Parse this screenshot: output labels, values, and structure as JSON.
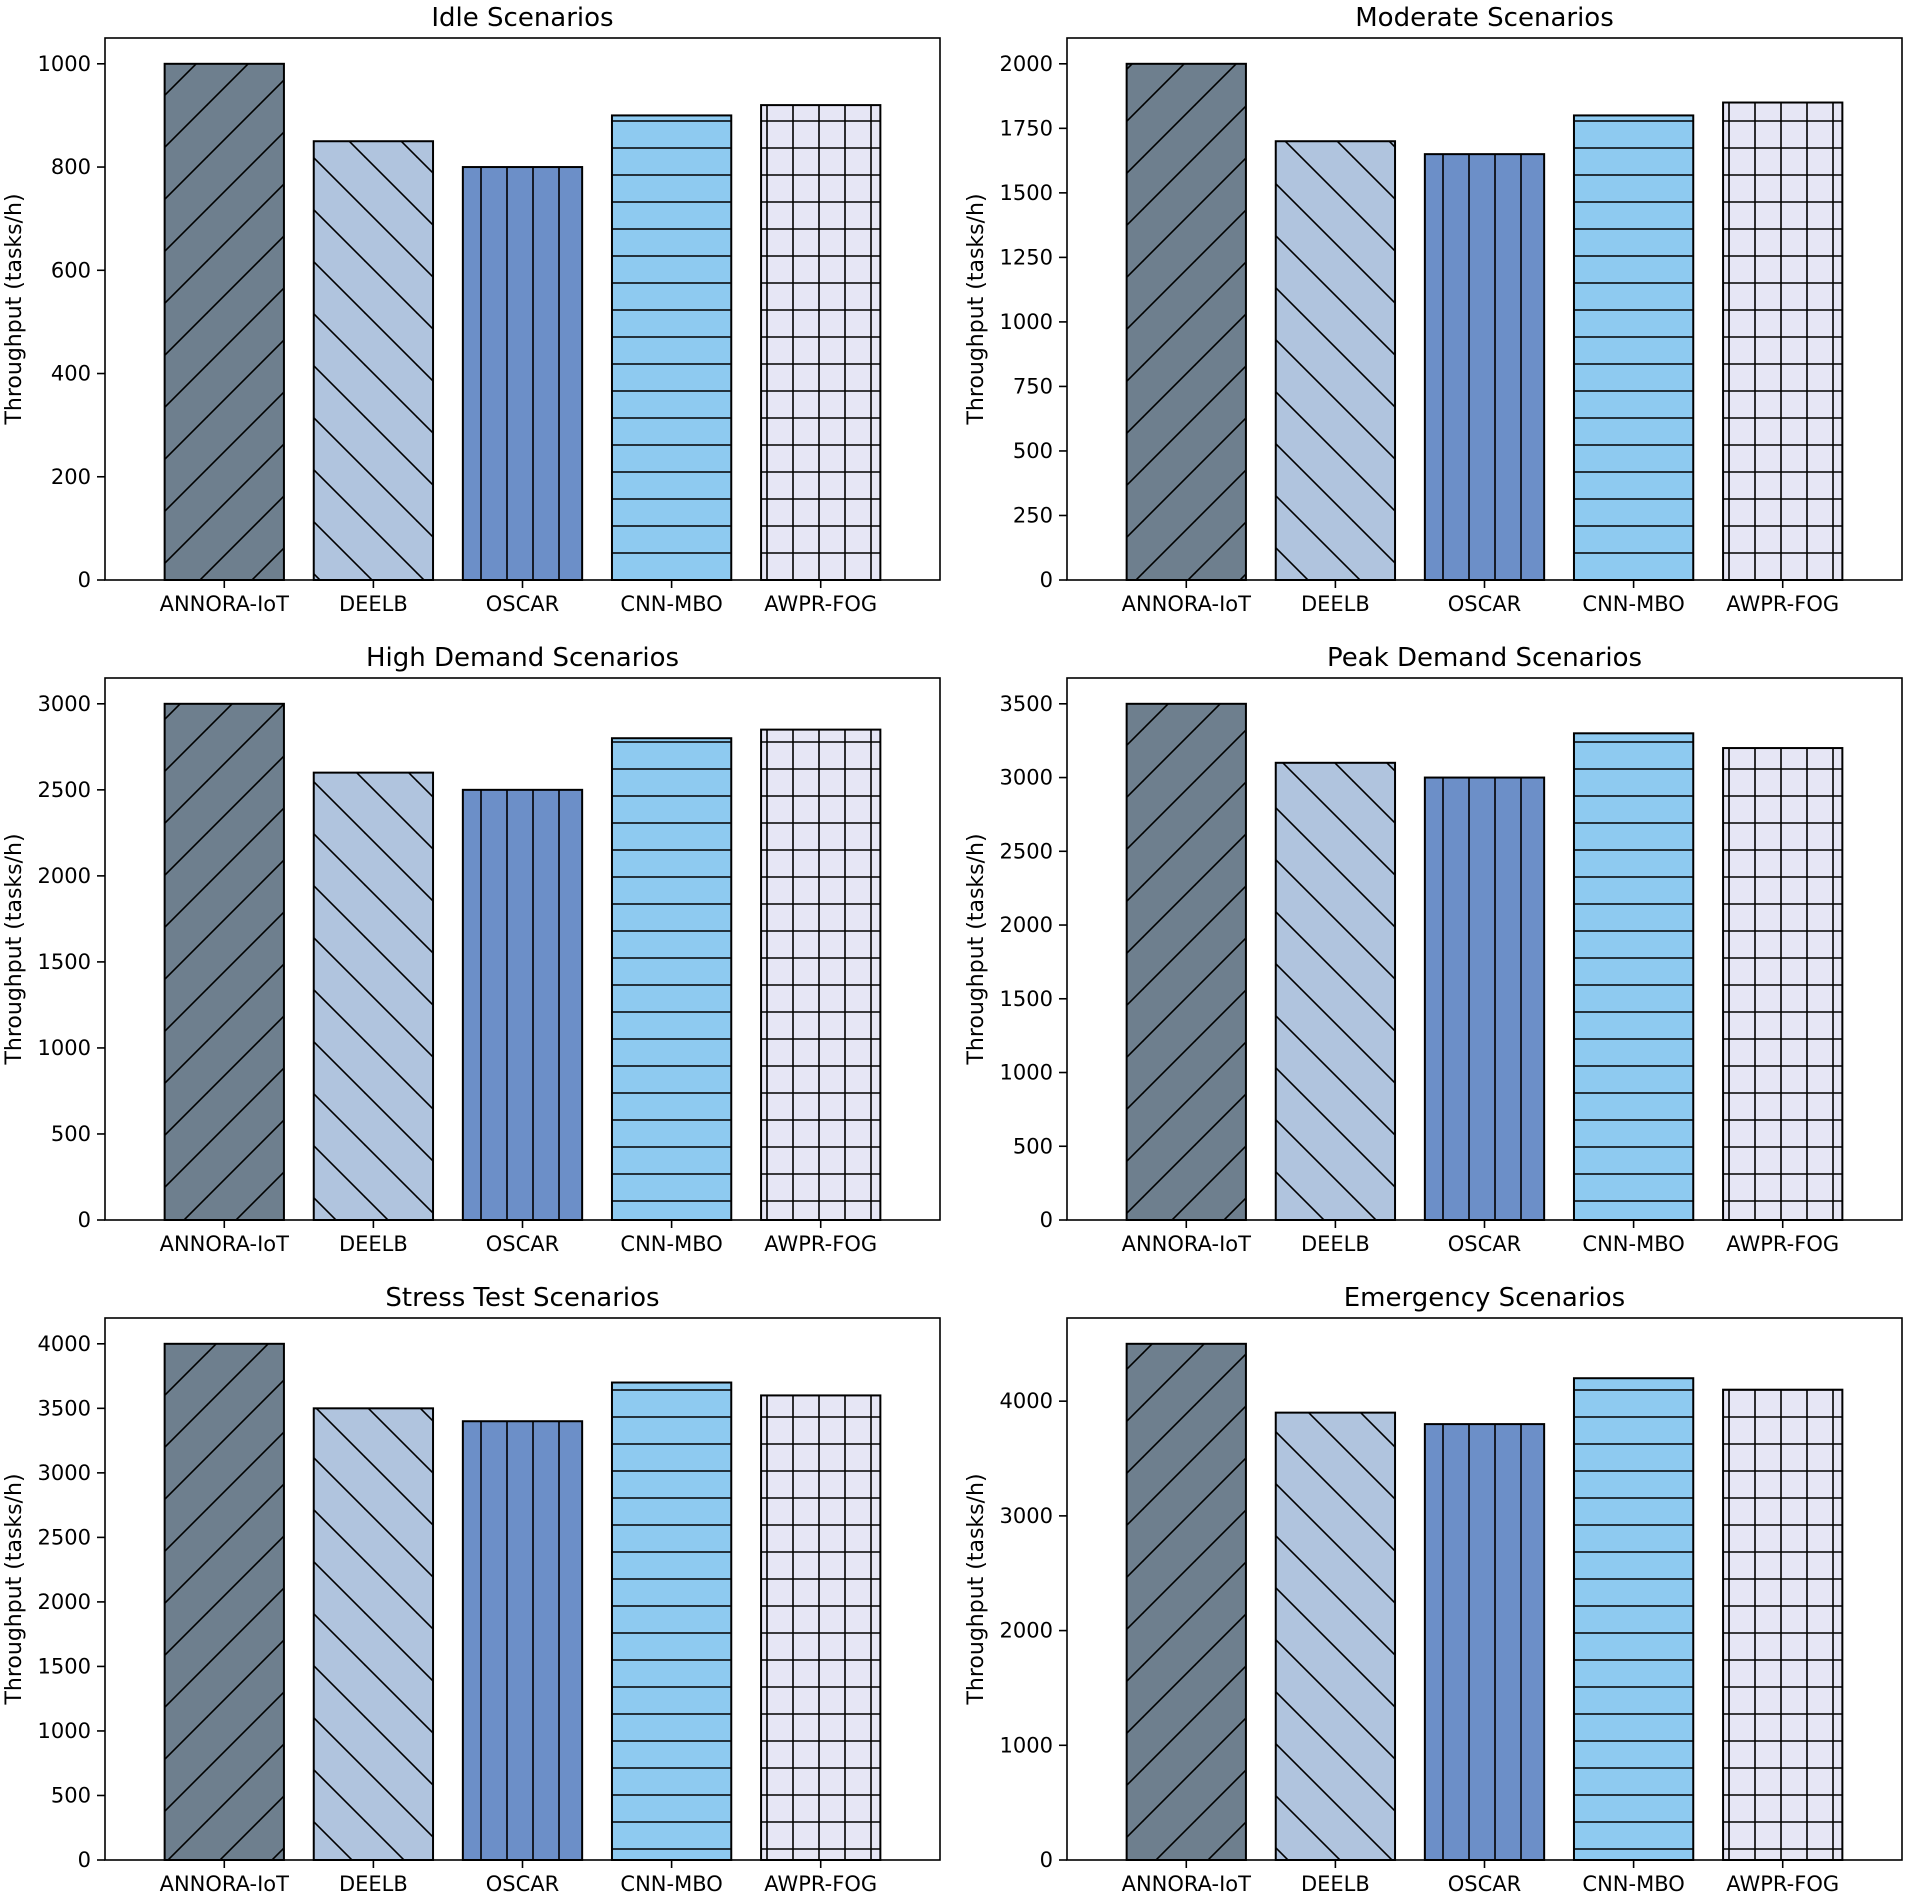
{
  "figure": {
    "bar_colors": [
      "#6e7f8e",
      "#b0c4de",
      "#6c8fc8",
      "#8ecaf0",
      "#e6e6f5"
    ],
    "hatch_patterns": [
      "diagonal-up",
      "diagonal-down",
      "vertical",
      "horizontal",
      "grid"
    ]
  },
  "chart_data": [
    {
      "type": "bar",
      "title": "Idle Scenarios",
      "xlabel": "",
      "ylabel": "Throughput (tasks/h)",
      "categories": [
        "ANNORA-IoT",
        "DEELB",
        "OSCAR",
        "CNN-MBO",
        "AWPR-FOG"
      ],
      "values": [
        1000,
        850,
        800,
        900,
        920
      ],
      "ylim": [
        0,
        1050
      ],
      "yticks": [
        0,
        200,
        400,
        600,
        800,
        1000
      ],
      "ytick_labels": [
        "0",
        "200",
        "400",
        "600",
        "800",
        "1000"
      ]
    },
    {
      "type": "bar",
      "title": "Moderate Scenarios",
      "xlabel": "",
      "ylabel": "Throughput (tasks/h)",
      "categories": [
        "ANNORA-IoT",
        "DEELB",
        "OSCAR",
        "CNN-MBO",
        "AWPR-FOG"
      ],
      "values": [
        2000,
        1700,
        1650,
        1800,
        1850
      ],
      "ylim": [
        0,
        2100
      ],
      "yticks": [
        0,
        250,
        500,
        750,
        1000,
        1250,
        1500,
        1750,
        2000
      ],
      "ytick_labels": [
        "0",
        "250",
        "500",
        "750",
        "1000",
        "1250",
        "1500",
        "1750",
        "2000"
      ]
    },
    {
      "type": "bar",
      "title": "High Demand Scenarios",
      "xlabel": "",
      "ylabel": "Throughput (tasks/h)",
      "categories": [
        "ANNORA-IoT",
        "DEELB",
        "OSCAR",
        "CNN-MBO",
        "AWPR-FOG"
      ],
      "values": [
        3000,
        2600,
        2500,
        2800,
        2850
      ],
      "ylim": [
        0,
        3150
      ],
      "yticks": [
        0,
        500,
        1000,
        1500,
        2000,
        2500,
        3000
      ],
      "ytick_labels": [
        "0",
        "500",
        "1000",
        "1500",
        "2000",
        "2500",
        "3000"
      ]
    },
    {
      "type": "bar",
      "title": "Peak Demand Scenarios",
      "xlabel": "",
      "ylabel": "Throughput (tasks/h)",
      "categories": [
        "ANNORA-IoT",
        "DEELB",
        "OSCAR",
        "CNN-MBO",
        "AWPR-FOG"
      ],
      "values": [
        3500,
        3100,
        3000,
        3300,
        3200
      ],
      "ylim": [
        0,
        3675
      ],
      "yticks": [
        0,
        500,
        1000,
        1500,
        2000,
        2500,
        3000,
        3500
      ],
      "ytick_labels": [
        "0",
        "500",
        "1000",
        "1500",
        "2000",
        "2500",
        "3000",
        "3500"
      ]
    },
    {
      "type": "bar",
      "title": "Stress Test Scenarios",
      "xlabel": "",
      "ylabel": "Throughput (tasks/h)",
      "categories": [
        "ANNORA-IoT",
        "DEELB",
        "OSCAR",
        "CNN-MBO",
        "AWPR-FOG"
      ],
      "values": [
        4000,
        3500,
        3400,
        3700,
        3600
      ],
      "ylim": [
        0,
        4200
      ],
      "yticks": [
        0,
        500,
        1000,
        1500,
        2000,
        2500,
        3000,
        3500,
        4000
      ],
      "ytick_labels": [
        "0",
        "500",
        "1000",
        "1500",
        "2000",
        "2500",
        "3000",
        "3500",
        "4000"
      ]
    },
    {
      "type": "bar",
      "title": "Emergency Scenarios",
      "xlabel": "",
      "ylabel": "Throughput (tasks/h)",
      "categories": [
        "ANNORA-IoT",
        "DEELB",
        "OSCAR",
        "CNN-MBO",
        "AWPR-FOG"
      ],
      "values": [
        4500,
        3900,
        3800,
        4200,
        4100
      ],
      "ylim": [
        0,
        4725
      ],
      "yticks": [
        0,
        1000,
        2000,
        3000,
        4000
      ],
      "ytick_labels": [
        "0",
        "1000",
        "2000",
        "3000",
        "4000"
      ]
    }
  ]
}
